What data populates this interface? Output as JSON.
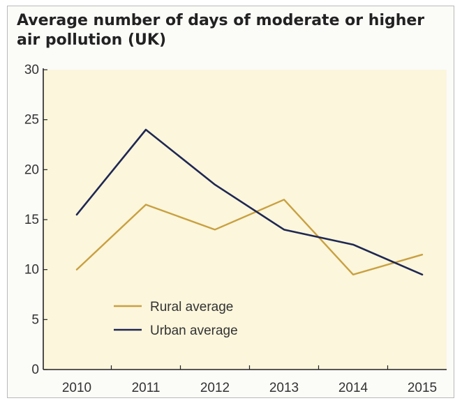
{
  "chart_data": {
    "type": "line",
    "title_line1": "Average number of days of moderate or higher",
    "title_line2": "air pollution (UK)",
    "categories": [
      "2010",
      "2011",
      "2012",
      "2013",
      "2014",
      "2015"
    ],
    "series": [
      {
        "name": "Rural average",
        "values": [
          10,
          16.5,
          14,
          17,
          9.5,
          11.5
        ],
        "color": "#c9a041"
      },
      {
        "name": "Urban average",
        "values": [
          15.5,
          24,
          18.5,
          14,
          12.5,
          9.5
        ],
        "color": "#1f2752"
      }
    ],
    "yticks": [
      0,
      5,
      10,
      15,
      20,
      25,
      30
    ],
    "ylim": [
      0,
      30
    ],
    "grid": false,
    "legend_position": "bottom-left",
    "plot_background": "#fbf6dc"
  }
}
